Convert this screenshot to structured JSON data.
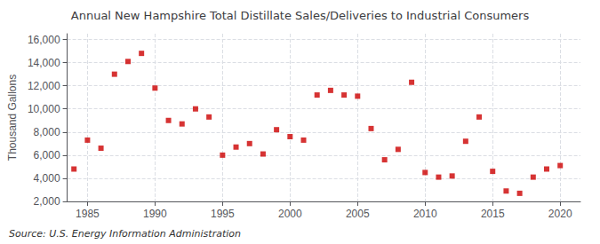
{
  "chart_data": {
    "type": "scatter",
    "title": "Annual New Hampshire Total Distillate Sales/Deliveries to Industrial Consumers",
    "ylabel": "Thousand Gallons",
    "annotation": "Source: U.S. Energy Information Administration",
    "x": [
      1984,
      1985,
      1986,
      1987,
      1988,
      1989,
      1990,
      1991,
      1992,
      1993,
      1994,
      1995,
      1996,
      1997,
      1998,
      1999,
      2000,
      2001,
      2002,
      2003,
      2004,
      2005,
      2006,
      2007,
      2008,
      2009,
      2010,
      2011,
      2012,
      2013,
      2014,
      2015,
      2016,
      2017,
      2018,
      2019,
      2020
    ],
    "values": [
      4800,
      7300,
      6600,
      13000,
      14100,
      14800,
      11800,
      9000,
      8700,
      10000,
      9300,
      6000,
      6700,
      7000,
      6100,
      8200,
      7600,
      7300,
      11200,
      11600,
      11200,
      11100,
      8300,
      5600,
      6500,
      12300,
      4500,
      4100,
      4200,
      7200,
      9300,
      4600,
      2900,
      2700,
      4100,
      4800,
      5100
    ],
    "color": "#cc0000",
    "marker": "square",
    "xlim": [
      1983.5,
      2021.5
    ],
    "xticks": [
      1985,
      1990,
      1995,
      2000,
      2005,
      2010,
      2015,
      2020
    ],
    "ylim": [
      2000,
      16500
    ],
    "yticks": [
      {
        "value": 2000,
        "label": "2,000"
      },
      {
        "value": 4000,
        "label": "4,000"
      },
      {
        "value": 6000,
        "label": "6,000"
      },
      {
        "value": 8000,
        "label": "8,000"
      },
      {
        "value": 10000,
        "label": "10,000"
      },
      {
        "value": 12000,
        "label": "12,000"
      },
      {
        "value": 14000,
        "label": "14,000"
      },
      {
        "value": 16000,
        "label": "16,000"
      }
    ],
    "grid": true
  }
}
